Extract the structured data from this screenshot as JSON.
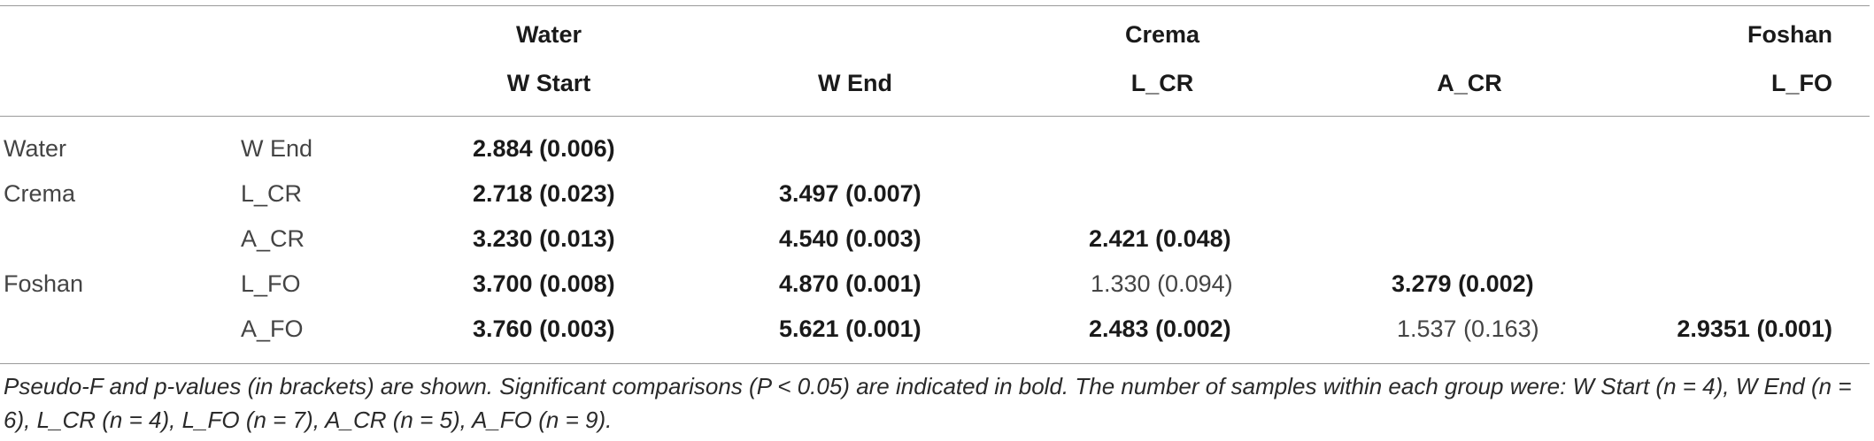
{
  "table": {
    "group_headers": [
      "Water",
      "Crema",
      "Foshan"
    ],
    "column_headers": [
      "W Start",
      "W End",
      "L_CR",
      "A_CR",
      "L_FO"
    ],
    "row_groups": [
      "Water",
      "Crema",
      "",
      "Foshan",
      ""
    ],
    "row_labels": [
      "W End",
      "L_CR",
      "A_CR",
      "L_FO",
      "A_FO"
    ],
    "rows": [
      [
        "2.884 (0.006)",
        "",
        "",
        "",
        ""
      ],
      [
        "2.718 (0.023)",
        "3.497 (0.007)",
        "",
        "",
        ""
      ],
      [
        "3.230 (0.013)",
        "4.540 (0.003)",
        "2.421 (0.048)",
        "",
        ""
      ],
      [
        "3.700 (0.008)",
        "4.870 (0.001)",
        "1.330 (0.094)",
        "3.279 (0.002)",
        ""
      ],
      [
        "3.760 (0.003)",
        "5.621 (0.001)",
        "2.483 (0.002)",
        "1.537 (0.163)",
        "2.9351 (0.001)"
      ]
    ],
    "footnote": "Pseudo-F and p-values (in brackets) are shown. Significant comparisons (P < 0.05) are indicated in bold. The number of samples within each group were: W Start (n = 4), W End (n = 6), L_CR (n = 4), L_FO (n = 7), A_CR (n = 5), A_FO (n = 9)."
  }
}
